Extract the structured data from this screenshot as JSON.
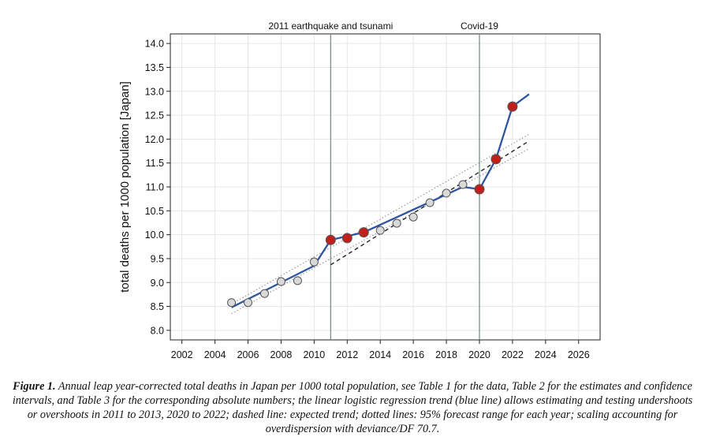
{
  "chart_data": {
    "type": "line",
    "ylabel": "total deaths per 1000 population [Japan]",
    "xlabel": "",
    "xlim": [
      2001.3,
      2027.3
    ],
    "ylim": [
      7.8,
      14.2
    ],
    "x_ticks": [
      2002,
      2004,
      2006,
      2008,
      2010,
      2012,
      2014,
      2016,
      2018,
      2020,
      2022,
      2024,
      2026
    ],
    "y_ticks": [
      8.0,
      8.5,
      9.0,
      9.5,
      10.0,
      10.5,
      11.0,
      11.5,
      12.0,
      12.5,
      13.0,
      13.5,
      14.0
    ],
    "grid": true,
    "events": [
      {
        "x": 2011,
        "label": "2011 earthquake and tsunami"
      },
      {
        "x": 2020,
        "label": "Covid-19"
      }
    ],
    "observed": {
      "name": "annual leap year-corrected total deaths per 1000",
      "points": [
        {
          "x": 2005,
          "y": 8.58,
          "flag": "normal"
        },
        {
          "x": 2006,
          "y": 8.58,
          "flag": "normal"
        },
        {
          "x": 2007,
          "y": 8.77,
          "flag": "normal"
        },
        {
          "x": 2008,
          "y": 9.02,
          "flag": "normal"
        },
        {
          "x": 2009,
          "y": 9.04,
          "flag": "normal"
        },
        {
          "x": 2010,
          "y": 9.43,
          "flag": "normal"
        },
        {
          "x": 2011,
          "y": 9.89,
          "flag": "event"
        },
        {
          "x": 2012,
          "y": 9.93,
          "flag": "event"
        },
        {
          "x": 2013,
          "y": 10.05,
          "flag": "event"
        },
        {
          "x": 2014,
          "y": 10.09,
          "flag": "normal"
        },
        {
          "x": 2015,
          "y": 10.24,
          "flag": "normal"
        },
        {
          "x": 2016,
          "y": 10.37,
          "flag": "normal"
        },
        {
          "x": 2017,
          "y": 10.67,
          "flag": "normal"
        },
        {
          "x": 2018,
          "y": 10.87,
          "flag": "normal"
        },
        {
          "x": 2019,
          "y": 11.05,
          "flag": "normal"
        },
        {
          "x": 2020,
          "y": 10.95,
          "flag": "event"
        },
        {
          "x": 2021,
          "y": 11.58,
          "flag": "event"
        },
        {
          "x": 2022,
          "y": 12.68,
          "flag": "event"
        }
      ]
    },
    "trend": {
      "name": "linear logistic regression trend (blue line)",
      "points": [
        [
          2005,
          8.48
        ],
        [
          2010,
          9.35
        ],
        [
          2011,
          9.89
        ],
        [
          2013,
          10.05
        ],
        [
          2019,
          11.0
        ],
        [
          2020,
          10.95
        ],
        [
          2021,
          11.58
        ],
        [
          2022,
          12.68
        ],
        [
          2023,
          12.94
        ]
      ]
    },
    "expected": {
      "name": "expected trend (dashed line)",
      "points": [
        [
          2011,
          9.37
        ],
        [
          2023,
          11.96
        ]
      ]
    },
    "forecast_range": {
      "name": "95% forecast range (dotted lines)",
      "upper": [
        [
          2005,
          8.55
        ],
        [
          2023,
          12.1
        ]
      ],
      "lower": [
        [
          2005,
          8.35
        ],
        [
          2023,
          11.8
        ]
      ]
    },
    "colors": {
      "line": "#2f55a0",
      "dashed": "#222222",
      "dotted": "#999999",
      "marker_normal_fill": "#d9d9d9",
      "marker_event_fill": "#c0201c",
      "marker_stroke": "#555555",
      "event_line": "#6e8a7a",
      "grid": "#e6e6e6"
    }
  },
  "caption": {
    "label": "Figure 1.",
    "text": " Annual leap year-corrected total deaths in Japan per 1000 total population, see Table 1 for the data, Table 2 for the estimates and confidence intervals, and Table 3 for the corresponding absolute numbers; the linear logistic regression trend (blue line) allows estimating and testing undershoots or overshoots in 2011 to 2013, 2020 to 2022; dashed line: expected trend; dotted lines: 95% forecast range for each year; scaling accounting for overdispersion with deviance/DF 70.7."
  }
}
